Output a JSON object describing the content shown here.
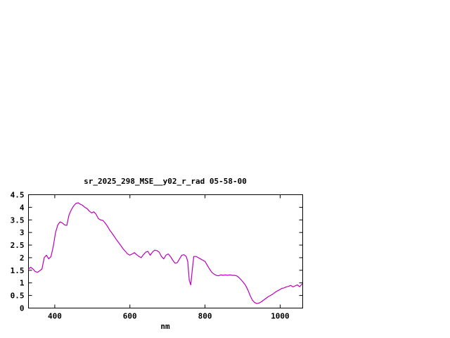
{
  "window": {
    "background": "#ffffff"
  },
  "chart_data": {
    "type": "line",
    "title": "sr_2025_298_MSE__y02_r_rad 05-58-00",
    "xlabel": "nm",
    "ylabel": "",
    "xlim": [
      330,
      1060
    ],
    "ylim": [
      0,
      4.5
    ],
    "xticks": [
      400,
      600,
      800,
      1000
    ],
    "xtick_labels": [
      "400",
      "600",
      "800",
      "1000"
    ],
    "yticks": [
      0,
      0.5,
      1,
      1.5,
      2,
      2.5,
      3,
      3.5,
      4,
      4.5
    ],
    "ytick_labels": [
      "0",
      "0.5",
      "1",
      "1.5",
      "2",
      "2.5",
      "3",
      "3.5",
      "4",
      "4.5"
    ],
    "grid": false,
    "legend": "none",
    "line_color": "#bb00bb",
    "axis_color": "#000000",
    "series": [
      {
        "x": [
          330,
          336,
          342,
          348,
          354,
          360,
          366,
          372,
          378,
          384,
          390,
          396,
          402,
          408,
          414,
          420,
          426,
          432,
          438,
          444,
          450,
          456,
          462,
          468,
          474,
          480,
          486,
          492,
          498,
          504,
          510,
          516,
          522,
          528,
          534,
          540,
          546,
          552,
          558,
          564,
          570,
          576,
          582,
          588,
          594,
          600,
          606,
          612,
          618,
          624,
          630,
          636,
          642,
          648,
          654,
          660,
          666,
          672,
          678,
          684,
          690,
          696,
          702,
          708,
          714,
          720,
          726,
          732,
          738,
          744,
          750,
          754,
          758,
          762,
          766,
          770,
          776,
          782,
          788,
          794,
          800,
          806,
          812,
          818,
          824,
          830,
          836,
          842,
          848,
          854,
          860,
          866,
          872,
          878,
          884,
          890,
          896,
          902,
          908,
          914,
          920,
          926,
          932,
          938,
          944,
          950,
          956,
          962,
          968,
          974,
          980,
          986,
          992,
          998,
          1004,
          1010,
          1016,
          1022,
          1028,
          1034,
          1040,
          1046,
          1052,
          1058
        ],
        "y": [
          1.55,
          1.62,
          1.55,
          1.45,
          1.42,
          1.48,
          1.55,
          2.0,
          2.1,
          1.95,
          2.05,
          2.45,
          3.0,
          3.3,
          3.42,
          3.38,
          3.3,
          3.28,
          3.7,
          3.9,
          4.05,
          4.15,
          4.18,
          4.12,
          4.08,
          4.0,
          3.95,
          3.85,
          3.78,
          3.82,
          3.72,
          3.55,
          3.5,
          3.48,
          3.38,
          3.25,
          3.1,
          2.98,
          2.85,
          2.72,
          2.6,
          2.48,
          2.35,
          2.25,
          2.15,
          2.1,
          2.15,
          2.2,
          2.12,
          2.05,
          2.0,
          2.12,
          2.22,
          2.25,
          2.1,
          2.22,
          2.3,
          2.28,
          2.22,
          2.05,
          1.95,
          2.1,
          2.15,
          2.05,
          1.9,
          1.78,
          1.8,
          1.95,
          2.1,
          2.12,
          2.05,
          1.85,
          1.1,
          0.92,
          1.5,
          2.05,
          2.05,
          2.0,
          1.95,
          1.9,
          1.85,
          1.7,
          1.55,
          1.42,
          1.35,
          1.3,
          1.28,
          1.32,
          1.3,
          1.32,
          1.3,
          1.32,
          1.3,
          1.3,
          1.28,
          1.22,
          1.12,
          1.02,
          0.9,
          0.72,
          0.5,
          0.32,
          0.22,
          0.18,
          0.2,
          0.25,
          0.32,
          0.38,
          0.45,
          0.5,
          0.55,
          0.62,
          0.68,
          0.72,
          0.78,
          0.8,
          0.84,
          0.86,
          0.9,
          0.84,
          0.88,
          0.92,
          0.85,
          0.95
        ]
      }
    ]
  }
}
